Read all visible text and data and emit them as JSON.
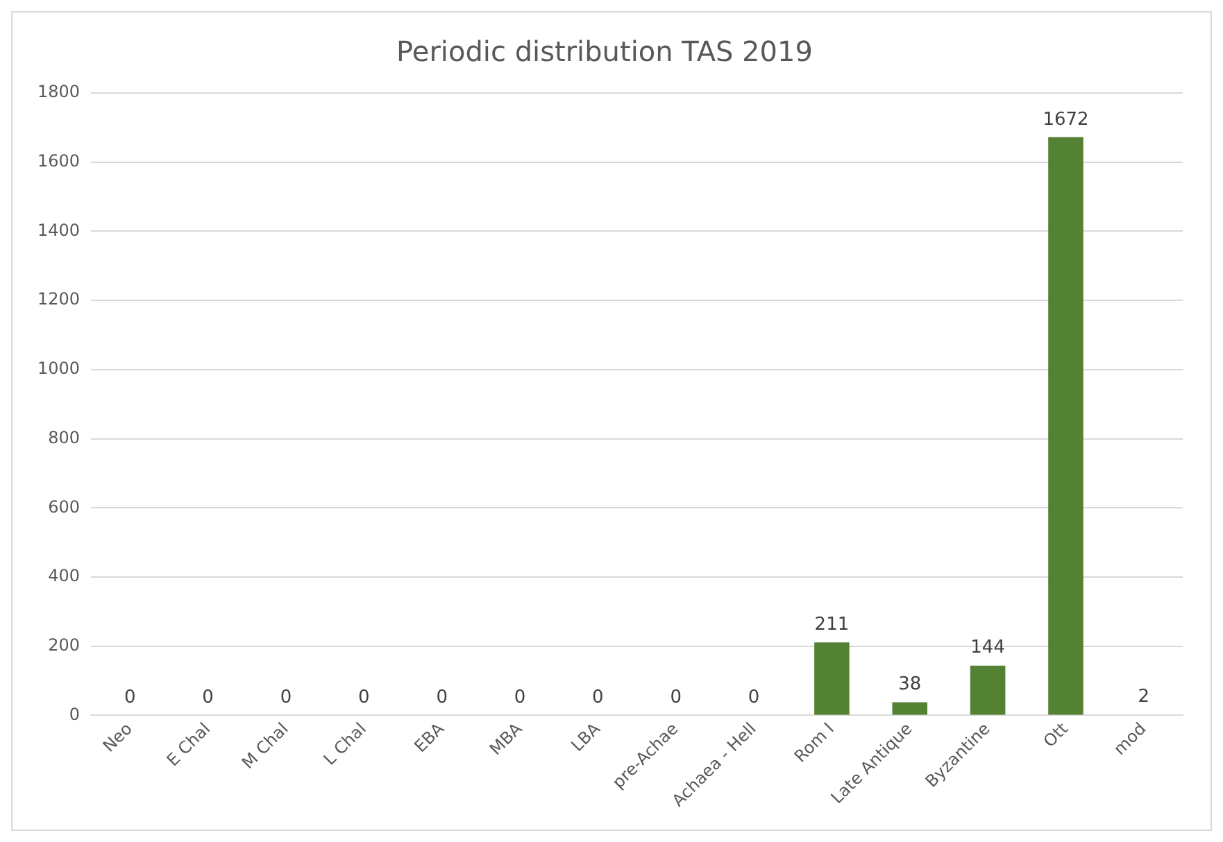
{
  "chart_data": {
    "type": "bar",
    "title": "Periodic distribution TAS 2019",
    "categories": [
      "Neo",
      "E Chal",
      "M Chal",
      "L Chal",
      "EBA",
      "MBA",
      "LBA",
      "pre-Achae",
      "Achaea - Hell",
      "Rom I",
      "Late Antique",
      "Byzantine",
      "Ott",
      "mod"
    ],
    "values": [
      0,
      0,
      0,
      0,
      0,
      0,
      0,
      0,
      0,
      211,
      38,
      144,
      1672,
      2
    ],
    "color": "#548235",
    "ylim": [
      0,
      1800
    ],
    "yticks": [
      0,
      200,
      400,
      600,
      800,
      1000,
      1200,
      1400,
      1600,
      1800
    ],
    "grid": "y",
    "data_labels": true,
    "legend": false
  }
}
